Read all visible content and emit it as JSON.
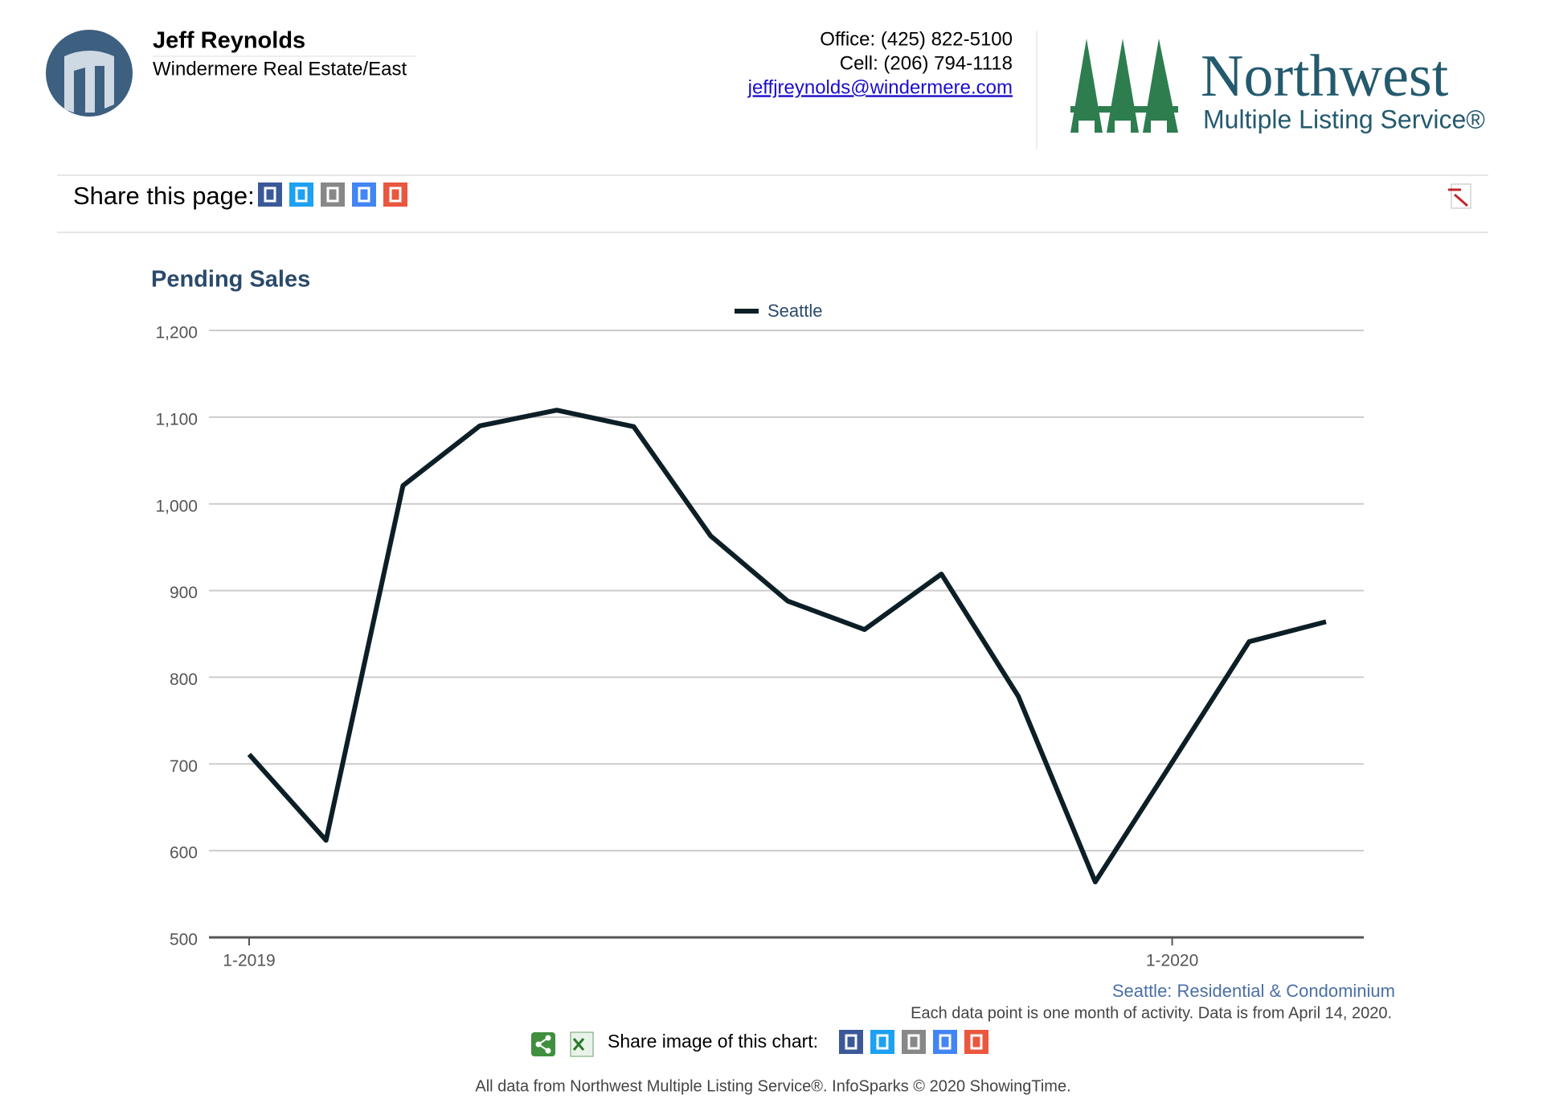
{
  "header": {
    "name": "Jeff Reynolds",
    "company": "Windermere Real Estate/East",
    "office": "Office: (425) 822-5100",
    "cell": "Cell: (206) 794-1118",
    "email": "jeffjreynolds@windermere.com",
    "logo_name": "Northwest",
    "logo_sub": "Multiple Listing Service®"
  },
  "share": {
    "label": "Share this page:"
  },
  "chart_data": {
    "type": "line",
    "title": "Pending Sales",
    "categories": [
      "1-2019",
      null,
      null,
      null,
      null,
      null,
      null,
      null,
      null,
      null,
      null,
      null,
      "1-2020",
      null,
      null
    ],
    "series": [
      {
        "name": "Seattle",
        "color": "#0d1f26",
        "values": [
          711,
          612,
          1021,
          1090,
          1108,
          1089,
          963,
          888,
          855,
          919,
          778,
          564,
          702,
          841,
          864
        ]
      }
    ],
    "ylim": [
      500,
      1200
    ],
    "yticks": [
      500,
      600,
      700,
      800,
      900,
      {
        "value": 1000,
        "label": "1,000"
      },
      {
        "value": 1100,
        "label": "1,100"
      },
      {
        "value": 1200,
        "label": "1,200"
      }
    ],
    "grid": true,
    "legend": "top"
  },
  "notes": {
    "subtitle": "Seattle: Residential & Condominium",
    "caption": "Each data point is one month of activity. Data is from April 14, 2020.",
    "share_image": "Share image of this chart:",
    "credit": "All data from Northwest Multiple Listing Service®. InfoSparks © 2020 ShowingTime."
  }
}
